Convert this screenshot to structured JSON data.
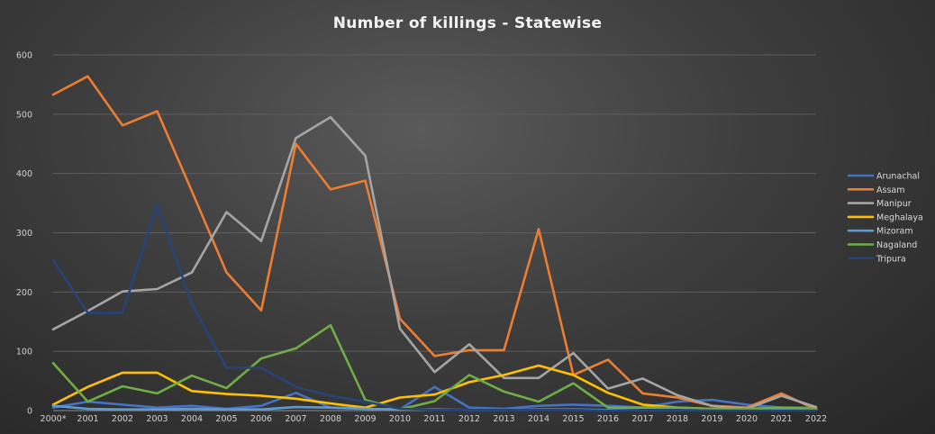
{
  "chart_data": {
    "type": "line",
    "title": "Number of killings - Statewise",
    "xlabel": "",
    "ylabel": "",
    "categories": [
      "2000*",
      "2001",
      "2002",
      "2003",
      "2004",
      "2005",
      "2006",
      "2007",
      "2008",
      "2009",
      "2010",
      "2011",
      "2012",
      "2013",
      "2014",
      "2015",
      "2016",
      "2017",
      "2018",
      "2019",
      "2020",
      "2021",
      "2022"
    ],
    "ylim": [
      0,
      600
    ],
    "yticks": [
      0,
      100,
      200,
      300,
      400,
      500,
      600
    ],
    "grid": true,
    "legend_position": "right",
    "series": [
      {
        "name": "Arunachal",
        "color": "#4472c4",
        "values": [
          5,
          15,
          10,
          5,
          8,
          3,
          8,
          30,
          5,
          3,
          2,
          40,
          5,
          3,
          8,
          10,
          8,
          5,
          15,
          18,
          10,
          5,
          5
        ]
      },
      {
        "name": "Assam",
        "color": "#ed7d31",
        "values": [
          533,
          564,
          481,
          505,
          370,
          233,
          169,
          450,
          373,
          388,
          155,
          92,
          102,
          102,
          306,
          60,
          86,
          29,
          22,
          8,
          5,
          29,
          2
        ]
      },
      {
        "name": "Manipur",
        "color": "#a5a5a5",
        "values": [
          137,
          168,
          201,
          205,
          233,
          335,
          286,
          460,
          495,
          430,
          138,
          65,
          112,
          55,
          55,
          97,
          37,
          54,
          26,
          8,
          3,
          25,
          6
        ]
      },
      {
        "name": "Meghalaya",
        "color": "#ffc000",
        "values": [
          10,
          40,
          64,
          64,
          33,
          28,
          25,
          20,
          12,
          5,
          22,
          27,
          48,
          60,
          76,
          60,
          30,
          10,
          5,
          3,
          3,
          2,
          2
        ]
      },
      {
        "name": "Mizoram",
        "color": "#5b9bd5",
        "values": [
          8,
          3,
          2,
          2,
          3,
          2,
          2,
          6,
          5,
          3,
          2,
          2,
          1,
          1,
          2,
          2,
          1,
          1,
          1,
          1,
          1,
          2,
          1
        ]
      },
      {
        "name": "Nagaland",
        "color": "#70ad47",
        "values": [
          80,
          15,
          41,
          29,
          59,
          38,
          88,
          105,
          144,
          18,
          2,
          16,
          60,
          32,
          15,
          46,
          5,
          5,
          5,
          3,
          3,
          5,
          3
        ]
      },
      {
        "name": "Tripura",
        "color": "#264478",
        "values": [
          254,
          165,
          165,
          348,
          180,
          72,
          72,
          40,
          25,
          15,
          3,
          1,
          1,
          1,
          1,
          1,
          0,
          1,
          1,
          0,
          0,
          0,
          0
        ]
      }
    ]
  }
}
